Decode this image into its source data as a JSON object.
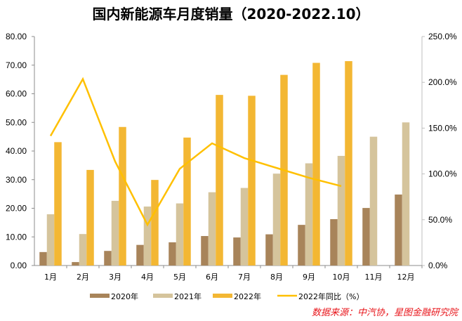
{
  "chart_data": {
    "type": "bar",
    "title": "国内新能源车月度销量（2020-2022.10）",
    "categories": [
      "1月",
      "2月",
      "3月",
      "4月",
      "5月",
      "6月",
      "7月",
      "8月",
      "9月",
      "10月",
      "11月",
      "12月"
    ],
    "series": [
      {
        "name": "2020年",
        "type": "bar",
        "axis": "left",
        "color": "#A8845A",
        "values": [
          4.7,
          1.2,
          5.1,
          7.2,
          8.1,
          10.3,
          9.8,
          10.9,
          14.2,
          16.2,
          20.1,
          24.8
        ]
      },
      {
        "name": "2021年",
        "type": "bar",
        "axis": "left",
        "color": "#D5C49C",
        "values": [
          17.9,
          11.0,
          22.6,
          20.6,
          21.7,
          25.6,
          27.1,
          32.1,
          35.7,
          38.3,
          45.0,
          50.0
        ]
      },
      {
        "name": "2022年",
        "type": "bar",
        "axis": "left",
        "color": "#F3B733",
        "values": [
          43.1,
          33.4,
          48.4,
          29.9,
          44.7,
          59.6,
          59.3,
          66.6,
          70.8,
          71.4,
          null,
          null
        ]
      },
      {
        "name": "2022年同比（%）",
        "type": "line",
        "axis": "right",
        "color": "#FFC000",
        "values": [
          141.5,
          203.6,
          113.5,
          44.5,
          105.6,
          133.4,
          117.3,
          106.5,
          95.8,
          86.7,
          null,
          null
        ]
      }
    ],
    "y_left": {
      "min": 0,
      "max": 80,
      "step": 10,
      "tick_labels": [
        "0.00",
        "10.00",
        "20.00",
        "30.00",
        "40.00",
        "50.00",
        "60.00",
        "70.00",
        "80.00"
      ]
    },
    "y_right": {
      "min": 0,
      "max": 250,
      "step": 50,
      "tick_labels": [
        "0.0%",
        "50.0%",
        "100.0%",
        "150.0%",
        "200.0%",
        "250.0%"
      ]
    },
    "xlabel": "",
    "ylabel": "",
    "grid": false,
    "legend_position": "bottom"
  },
  "source_note": "数据来源：中汽协，星图金融研究院"
}
